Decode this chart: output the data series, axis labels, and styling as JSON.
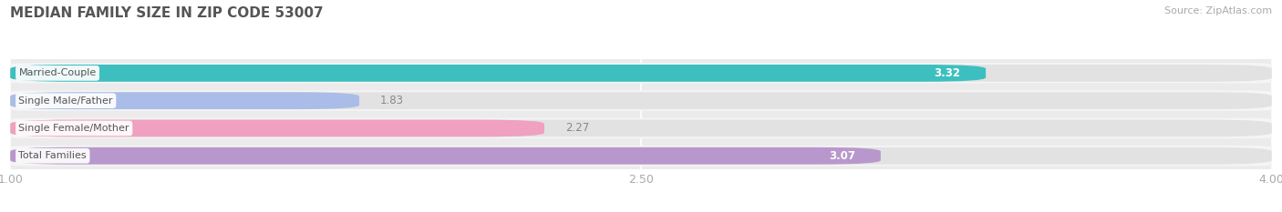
{
  "title": "MEDIAN FAMILY SIZE IN ZIP CODE 53007",
  "source": "Source: ZipAtlas.com",
  "categories": [
    "Married-Couple",
    "Single Male/Father",
    "Single Female/Mother",
    "Total Families"
  ],
  "values": [
    3.32,
    1.83,
    2.27,
    3.07
  ],
  "bar_colors": [
    "#3dbfbf",
    "#aabde8",
    "#f0a0c0",
    "#b898cc"
  ],
  "xlim_min": 1.0,
  "xlim_max": 4.0,
  "xticks": [
    1.0,
    2.5,
    4.0
  ],
  "background_color": "#ffffff",
  "plot_bg_color": "#ebebeb",
  "row_bg_color": "#f5f5f5",
  "bar_bg_color": "#e2e2e2",
  "title_fontsize": 11,
  "source_fontsize": 8,
  "tick_fontsize": 9,
  "bar_height": 0.62,
  "value_inside_color": "#ffffff",
  "value_outside_color": "#888888",
  "cat_label_color": "#555555",
  "title_color": "#555555",
  "inside_threshold": 2.8
}
